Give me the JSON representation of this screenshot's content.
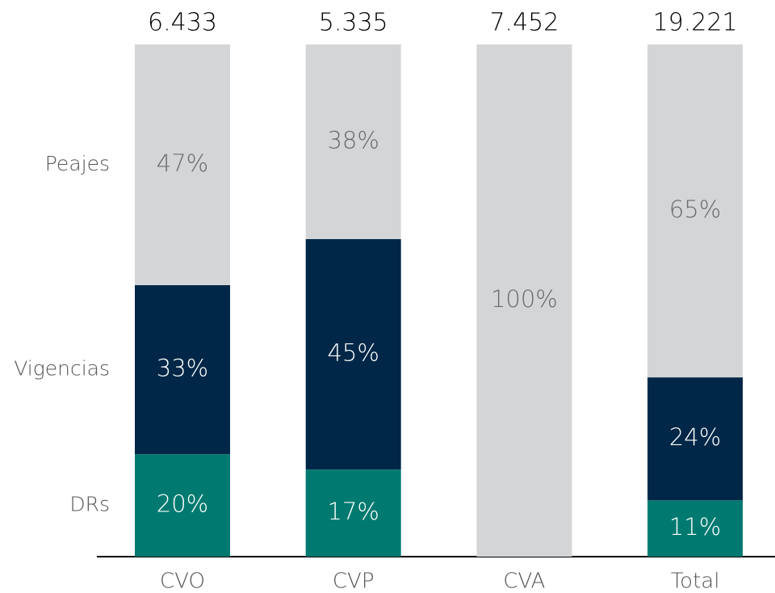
{
  "chart_data": {
    "type": "stacked_bar_100",
    "categories": [
      "CVO",
      "CVP",
      "CVA",
      "Total"
    ],
    "totals": [
      6433,
      5335,
      7452,
      19221
    ],
    "total_labels": [
      "6.433",
      "5.335",
      "7.452",
      "19.221"
    ],
    "series": [
      {
        "name": "DRs",
        "color": "#007a70",
        "label_color": "#ffffff",
        "values": [
          20,
          17,
          null,
          11
        ],
        "value_labels": [
          "20%",
          "17%",
          null,
          "11%"
        ]
      },
      {
        "name": "Vigencias",
        "color": "#002747",
        "label_color": "#ffffff",
        "values": [
          33,
          45,
          null,
          24
        ],
        "value_labels": [
          "33%",
          "45%",
          null,
          "24%"
        ]
      },
      {
        "name": "Peajes",
        "color": "#d4d5d7",
        "label_color": "#6b6b6b",
        "values": [
          47,
          38,
          100,
          65
        ],
        "value_labels": [
          "47%",
          "38%",
          "100%",
          "65%"
        ]
      }
    ]
  }
}
